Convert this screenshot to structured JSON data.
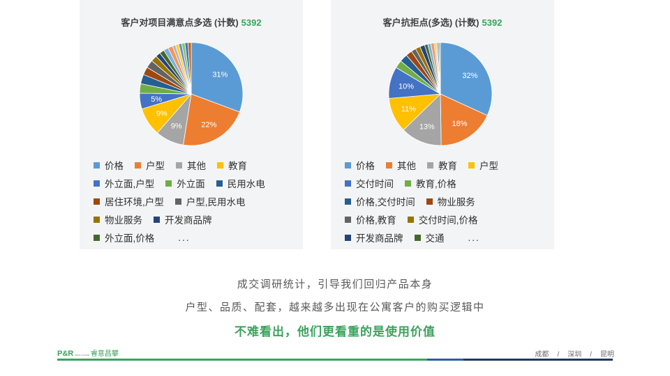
{
  "chart_data": [
    {
      "type": "pie",
      "title": "客户对项目满意点多选 (计数)",
      "total_label": "5392",
      "slices": [
        {
          "label": "价格",
          "value": 31,
          "color": "#5b9bd5",
          "show": true
        },
        {
          "label": "户型",
          "value": 22,
          "color": "#ed7d31",
          "show": true
        },
        {
          "label": "其他",
          "value": 9,
          "color": "#a5a5a5",
          "show": true
        },
        {
          "label": "教育",
          "value": 9,
          "color": "#ffc000",
          "show": true
        },
        {
          "label": "外立面,户型",
          "value": 5,
          "color": "#4472c4",
          "show": true
        },
        {
          "label": "外立面",
          "value": 3,
          "color": "#70ad47",
          "show": false
        },
        {
          "label": "民用水电",
          "value": 3,
          "color": "#255e91",
          "show": false
        },
        {
          "label": "居住环境,户型",
          "value": 2.5,
          "color": "#9e480e",
          "show": false
        },
        {
          "label": "户型,民用水电",
          "value": 2.5,
          "color": "#636363",
          "show": false
        },
        {
          "label": "物业服务",
          "value": 2,
          "color": "#997300",
          "show": false
        },
        {
          "label": "开发商品牌",
          "value": 1.5,
          "color": "#264478",
          "show": false
        },
        {
          "label": "外立面,价格",
          "value": 1.5,
          "color": "#43682b",
          "show": false
        },
        {
          "label": "",
          "value": 1.5,
          "color": "#7cafdd",
          "show": false
        },
        {
          "label": "",
          "value": 1.5,
          "color": "#f1975a",
          "show": false
        },
        {
          "label": "",
          "value": 1,
          "color": "#b7b7b7",
          "show": false
        },
        {
          "label": "",
          "value": 1,
          "color": "#ffcd33",
          "show": false
        },
        {
          "label": "",
          "value": 1,
          "color": "#698ed0",
          "show": false
        },
        {
          "label": "",
          "value": 1,
          "color": "#8cc168",
          "show": false
        },
        {
          "label": "",
          "value": 1,
          "color": "#327dc2",
          "show": false
        },
        {
          "label": "",
          "value": 1,
          "color": "#d26012",
          "show": false
        }
      ],
      "legend_rows": [
        [
          "价格",
          "户型",
          "其他",
          "教育"
        ],
        [
          "外立面,户型",
          "外立面",
          "民用水电"
        ],
        [
          "居住环境,户型",
          "户型,民用水电"
        ],
        [
          "物业服务",
          "开发商品牌"
        ],
        [
          "外立面,价格",
          "..."
        ]
      ]
    },
    {
      "type": "pie",
      "title": "客户抗拒点(多选) (计数)",
      "total_label": "5392",
      "slices": [
        {
          "label": "价格",
          "value": 32,
          "color": "#5b9bd5",
          "show": true
        },
        {
          "label": "其他",
          "value": 18,
          "color": "#ed7d31",
          "show": true
        },
        {
          "label": "教育",
          "value": 13,
          "color": "#a5a5a5",
          "show": true
        },
        {
          "label": "户型",
          "value": 11,
          "color": "#ffc000",
          "show": true
        },
        {
          "label": "交付时间",
          "value": 10,
          "color": "#4472c4",
          "show": true
        },
        {
          "label": "教育,价格",
          "value": 2.5,
          "color": "#70ad47",
          "show": false
        },
        {
          "label": "价格,交付时间",
          "value": 2.5,
          "color": "#255e91",
          "show": false
        },
        {
          "label": "物业服务",
          "value": 2,
          "color": "#9e480e",
          "show": false
        },
        {
          "label": "价格,教育",
          "value": 1.5,
          "color": "#636363",
          "show": false
        },
        {
          "label": "交付时间,价格",
          "value": 1.5,
          "color": "#997300",
          "show": false
        },
        {
          "label": "开发商品牌",
          "value": 1.5,
          "color": "#264478",
          "show": false
        },
        {
          "label": "交通",
          "value": 1,
          "color": "#43682b",
          "show": false
        },
        {
          "label": "",
          "value": 1,
          "color": "#7cafdd",
          "show": false
        },
        {
          "label": "",
          "value": 1,
          "color": "#f1975a",
          "show": false
        },
        {
          "label": "",
          "value": 0.5,
          "color": "#b7b7b7",
          "show": false
        },
        {
          "label": "",
          "value": 0.5,
          "color": "#ffcd33",
          "show": false
        },
        {
          "label": "",
          "value": 0.5,
          "color": "#698ed0",
          "show": false
        },
        {
          "label": "",
          "value": 0.5,
          "color": "#8cc168",
          "show": false
        }
      ],
      "legend_rows": [
        [
          "价格",
          "其他",
          "教育",
          "户型"
        ],
        [
          "交付时间",
          "教育,价格"
        ],
        [
          "价格,交付时间",
          "物业服务"
        ],
        [
          "价格,教育",
          "交付时间,价格"
        ],
        [
          "开发商品牌",
          "交通",
          "..."
        ]
      ]
    }
  ],
  "captions": {
    "line1": "成交调研统计，引导我们回归产品本身",
    "line2": "户型、品质、配套，越来越多出现在公寓客户的购买逻辑中",
    "line3": "不难看出，他们更看重的是使用价值"
  },
  "footer": {
    "logo_mark": "P&R",
    "logo_small": "PENG & ROSE",
    "logo_name": "睿意昌攀",
    "cities": [
      "成都",
      "深圳",
      "昆明"
    ],
    "separator": "/",
    "bar_colors": [
      "#3aa35c",
      "#2e5d9f",
      "#1f3760"
    ]
  }
}
